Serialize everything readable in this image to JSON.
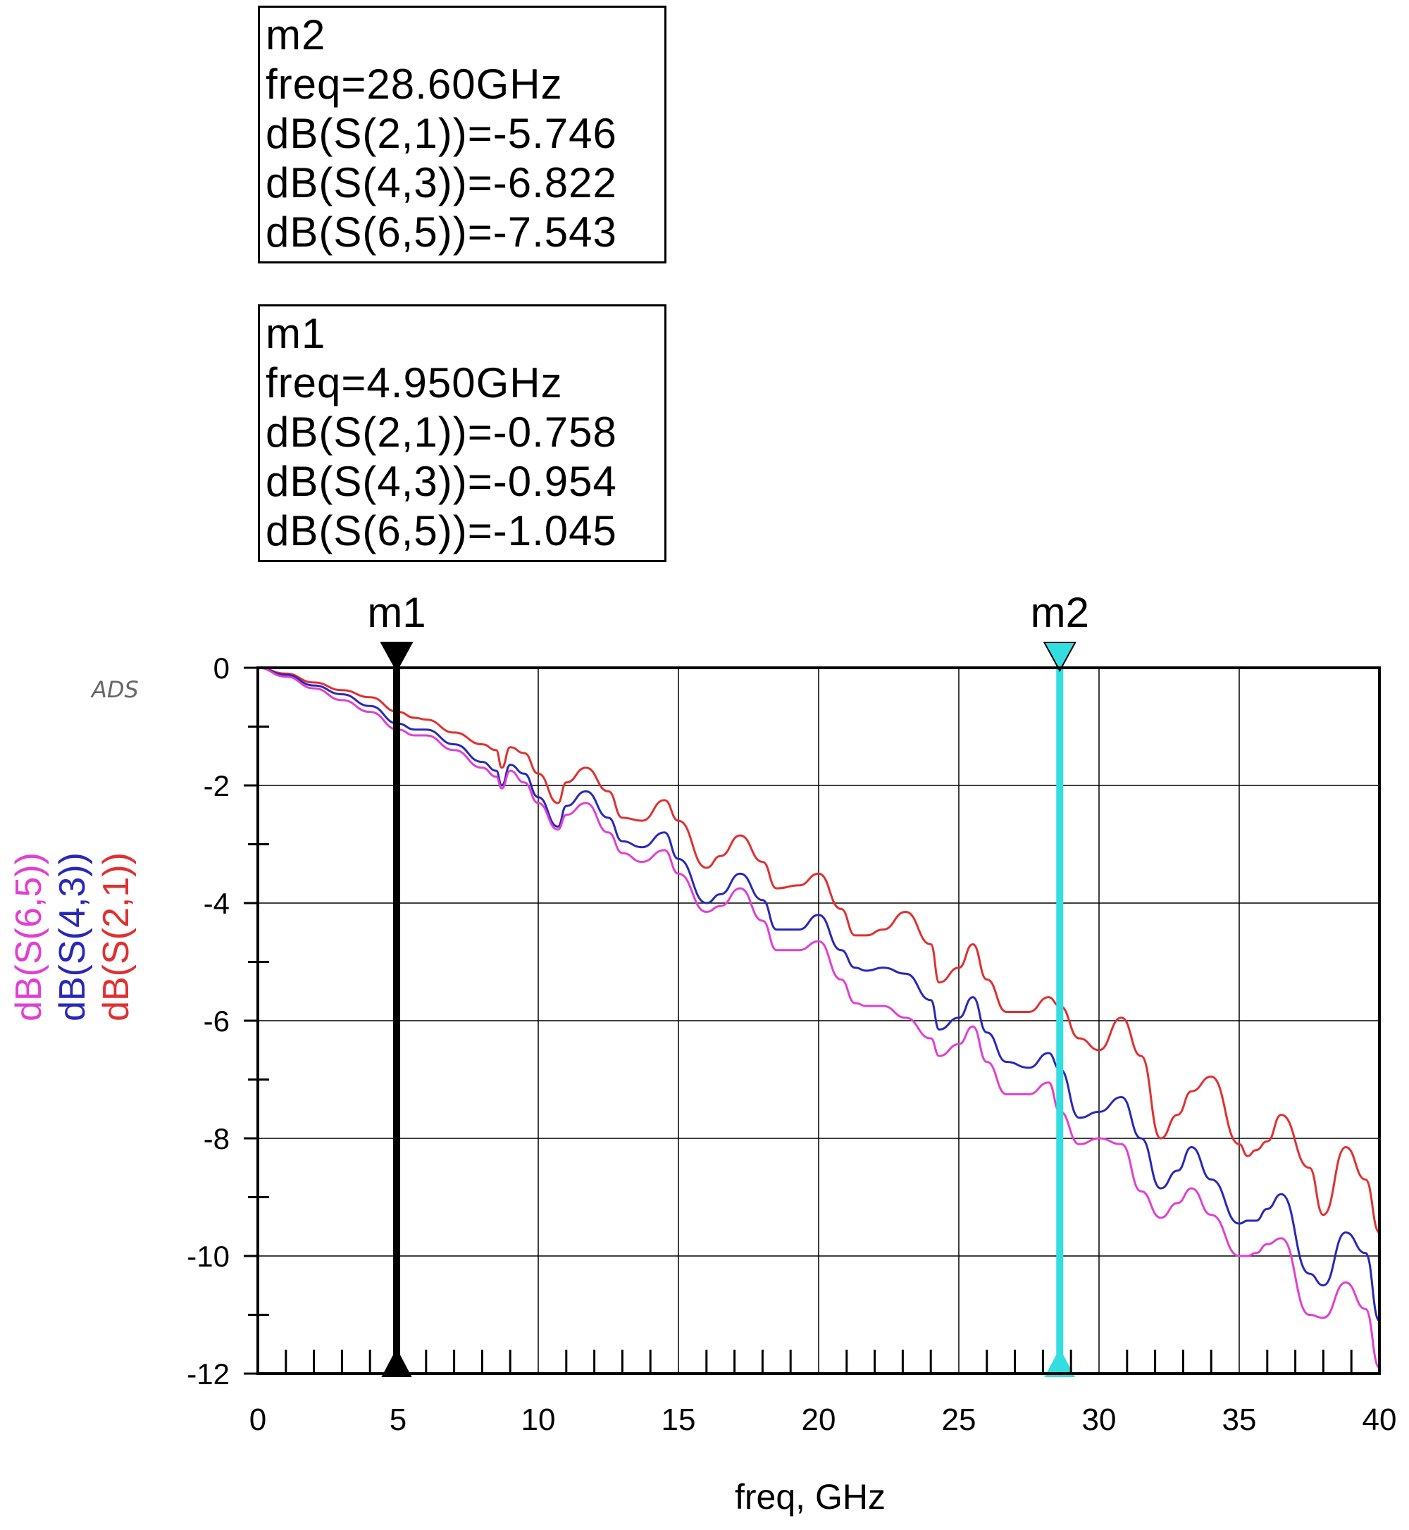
{
  "marker_readouts": [
    {
      "name": "m2",
      "freq": "freq=28.60GHz",
      "lines": [
        "dB(S(2,1))=-5.746",
        "dB(S(4,3))=-6.822",
        "dB(S(6,5))=-7.543"
      ]
    },
    {
      "name": "m1",
      "freq": "freq=4.950GHz",
      "lines": [
        "dB(S(2,1))=-0.758",
        "dB(S(4,3))=-0.954",
        "dB(S(6,5))=-1.045"
      ]
    }
  ],
  "chart_data": {
    "type": "line",
    "title": "",
    "watermark": "ADS",
    "xlabel": "freq, GHz",
    "ylabel_series_order": [
      "dB(S(6,5))",
      "dB(S(4,3))",
      "dB(S(2,1))"
    ],
    "xlim": [
      0,
      40
    ],
    "ylim": [
      -12,
      0
    ],
    "xticks": [
      0,
      5,
      10,
      15,
      20,
      25,
      30,
      35,
      40
    ],
    "yticks": [
      0,
      -2,
      -4,
      -6,
      -8,
      -10,
      -12
    ],
    "grid": true,
    "markers": [
      {
        "name": "m1",
        "freq": 4.95,
        "color": "#000000"
      },
      {
        "name": "m2",
        "freq": 28.6,
        "color": "#33dde0"
      }
    ],
    "series": [
      {
        "name": "dB(S(2,1))",
        "color": "#e03030",
        "x": [
          0,
          1,
          2,
          3,
          4,
          5,
          5.6,
          6,
          7,
          8,
          8.5,
          8.7,
          9,
          9.5,
          10,
          10.7,
          11,
          11.7,
          12.5,
          13,
          13.7,
          14.5,
          15,
          16,
          16.5,
          17.2,
          18,
          18.5,
          19.3,
          20,
          20.8,
          21.3,
          21.7,
          22.3,
          23.1,
          24,
          24.3,
          25,
          25.5,
          26,
          26.7,
          27.5,
          28.2,
          28.6,
          29.3,
          30,
          30.8,
          31.5,
          32.2,
          32.8,
          33.3,
          34,
          35,
          35.3,
          35.6,
          36,
          36.5,
          37.5,
          38,
          38.8,
          39.5,
          40
        ],
        "y": [
          0,
          -0.1,
          -0.25,
          -0.38,
          -0.5,
          -0.75,
          -0.85,
          -0.88,
          -1.1,
          -1.3,
          -1.4,
          -1.7,
          -1.35,
          -1.45,
          -1.8,
          -2.3,
          -1.95,
          -1.7,
          -2.1,
          -2.55,
          -2.6,
          -2.25,
          -2.6,
          -3.4,
          -3.2,
          -2.85,
          -3.3,
          -3.75,
          -3.7,
          -3.5,
          -4.1,
          -4.55,
          -4.55,
          -4.45,
          -4.15,
          -4.7,
          -5.35,
          -5.1,
          -4.7,
          -5.3,
          -5.85,
          -5.85,
          -5.6,
          -5.75,
          -6.3,
          -6.5,
          -5.95,
          -6.6,
          -8.0,
          -7.6,
          -7.2,
          -6.95,
          -8.1,
          -8.3,
          -8.2,
          -8.05,
          -7.6,
          -8.5,
          -9.3,
          -8.15,
          -8.7,
          -9.6
        ]
      },
      {
        "name": "dB(S(4,3))",
        "color": "#2828b8",
        "x": [
          0,
          1,
          2,
          3,
          4,
          5,
          5.6,
          6,
          7,
          8,
          8.5,
          8.7,
          9,
          9.5,
          10,
          10.7,
          11,
          11.7,
          12.5,
          13,
          13.7,
          14.5,
          15,
          16,
          16.5,
          17.2,
          18,
          18.5,
          19.3,
          20,
          20.8,
          21.3,
          21.7,
          22.3,
          23.1,
          24,
          24.3,
          25,
          25.5,
          26,
          26.7,
          27.5,
          28.2,
          28.6,
          29.3,
          30,
          30.8,
          31.5,
          32.2,
          32.8,
          33.3,
          34,
          35,
          35.3,
          35.6,
          36,
          36.5,
          37.5,
          38,
          38.8,
          39.5,
          40
        ],
        "y": [
          0,
          -0.12,
          -0.3,
          -0.45,
          -0.65,
          -0.95,
          -1.05,
          -1.05,
          -1.3,
          -1.6,
          -1.75,
          -2.0,
          -1.65,
          -1.8,
          -2.2,
          -2.7,
          -2.35,
          -2.1,
          -2.55,
          -2.95,
          -3.05,
          -2.8,
          -3.25,
          -4.0,
          -3.85,
          -3.5,
          -3.95,
          -4.45,
          -4.45,
          -4.2,
          -4.8,
          -5.1,
          -5.15,
          -5.1,
          -5.2,
          -5.65,
          -6.15,
          -5.95,
          -5.6,
          -6.2,
          -6.7,
          -6.8,
          -6.55,
          -6.82,
          -7.65,
          -7.55,
          -7.3,
          -8.0,
          -8.85,
          -8.55,
          -8.15,
          -8.7,
          -9.45,
          -9.4,
          -9.4,
          -9.2,
          -8.95,
          -10.3,
          -10.5,
          -9.6,
          -9.95,
          -11.1
        ]
      },
      {
        "name": "dB(S(6,5))",
        "color": "#e040d0",
        "x": [
          0,
          1,
          2,
          3,
          4,
          5,
          5.6,
          6,
          7,
          8,
          8.5,
          8.7,
          9,
          9.5,
          10,
          10.7,
          11,
          11.7,
          12.5,
          13,
          13.7,
          14.5,
          15,
          16,
          16.5,
          17.2,
          18,
          18.5,
          19.3,
          20,
          20.8,
          21.3,
          21.7,
          22.3,
          23.1,
          24,
          24.3,
          25,
          25.5,
          26,
          26.7,
          27.5,
          28.2,
          28.6,
          29.3,
          30,
          30.8,
          31.5,
          32.2,
          32.8,
          33.3,
          34,
          35,
          35.3,
          35.6,
          36,
          36.5,
          37.5,
          38,
          38.8,
          39.5,
          40
        ],
        "y": [
          0,
          -0.15,
          -0.35,
          -0.55,
          -0.75,
          -1.05,
          -1.15,
          -1.15,
          -1.4,
          -1.7,
          -1.85,
          -2.05,
          -1.75,
          -1.95,
          -2.3,
          -2.75,
          -2.5,
          -2.3,
          -2.8,
          -3.15,
          -3.3,
          -3.1,
          -3.5,
          -4.15,
          -4.05,
          -3.75,
          -4.3,
          -4.8,
          -4.8,
          -4.65,
          -5.3,
          -5.7,
          -5.75,
          -5.75,
          -5.95,
          -6.3,
          -6.6,
          -6.4,
          -6.1,
          -6.7,
          -7.25,
          -7.25,
          -7.05,
          -7.543,
          -8.1,
          -8.0,
          -8.1,
          -8.9,
          -9.35,
          -9.1,
          -8.85,
          -9.3,
          -10.0,
          -10.0,
          -9.95,
          -9.8,
          -9.7,
          -11.0,
          -11.05,
          -10.45,
          -10.9,
          -11.9
        ]
      }
    ]
  }
}
